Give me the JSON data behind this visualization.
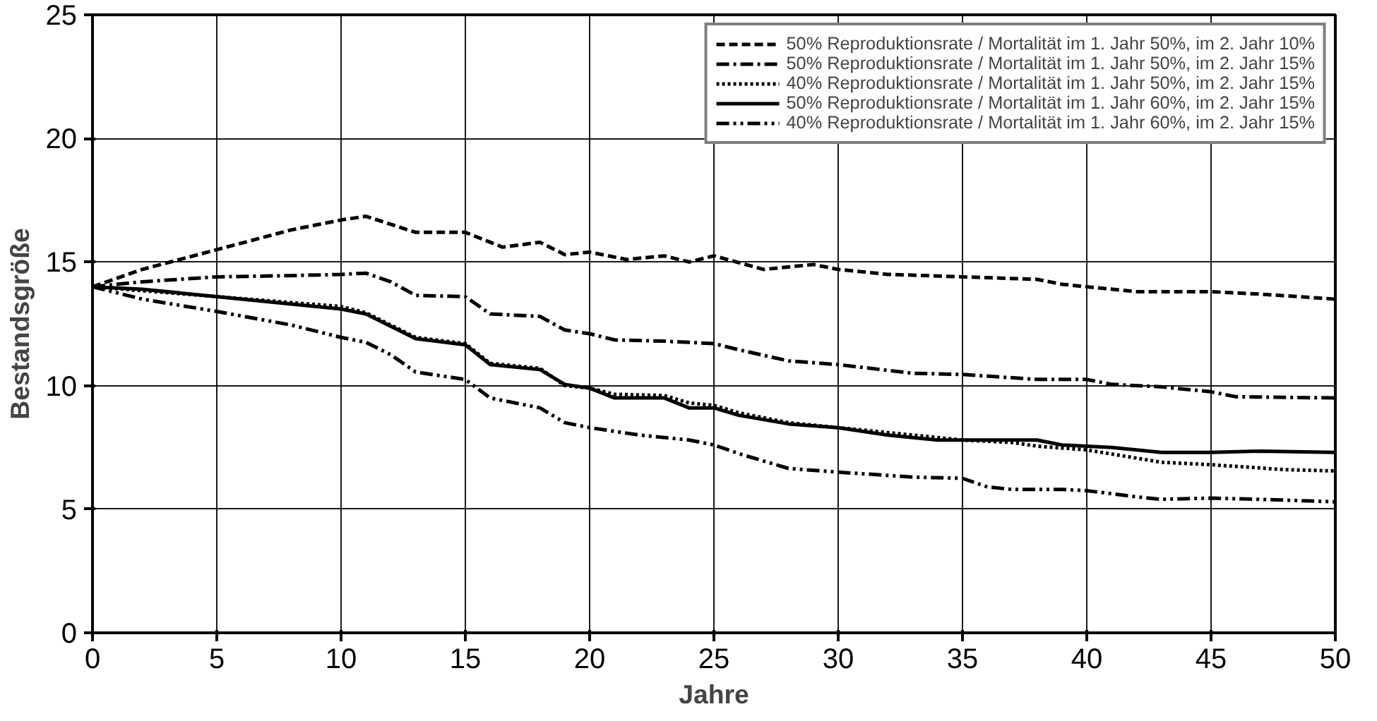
{
  "chart_data": {
    "type": "line",
    "xlabel": "Jahre",
    "ylabel": "Bestandsgröße",
    "xlim": [
      0,
      50
    ],
    "ylim": [
      0,
      25
    ],
    "xticks": [
      0,
      5,
      10,
      15,
      20,
      25,
      30,
      35,
      40,
      45,
      50
    ],
    "yticks": [
      0,
      5,
      10,
      15,
      20,
      25
    ],
    "grid": true,
    "legend": "top right",
    "series": [
      {
        "name": "50% Reproduktionsrate / Mortalität im 1. Jahr 50%, im 2. Jahr 10%",
        "color": "#000000",
        "line_style": "dashed",
        "x": [
          0,
          2,
          5,
          8,
          10,
          11,
          13,
          15,
          16.5,
          18,
          19,
          20,
          21.5,
          23,
          24,
          25,
          27,
          29,
          30,
          32,
          35,
          38,
          39,
          42,
          45,
          47,
          50
        ],
        "values": [
          14,
          14.7,
          15.5,
          16.3,
          16.7,
          16.85,
          16.2,
          16.2,
          15.6,
          15.8,
          15.3,
          15.4,
          15.1,
          15.25,
          15.0,
          15.25,
          14.7,
          14.9,
          14.7,
          14.5,
          14.4,
          14.3,
          14.1,
          13.8,
          13.8,
          13.7,
          13.5
        ]
      },
      {
        "name": "50% Reproduktionsrate / Mortalität im 1. Jahr 50%, im 2. Jahr 15%",
        "color": "#000000",
        "line_style": "dashdot",
        "x": [
          0,
          2,
          5,
          8,
          10,
          11,
          12,
          13,
          15,
          16,
          18,
          19,
          20,
          21,
          23,
          25,
          26,
          28,
          30,
          33,
          35,
          38,
          40,
          41,
          43,
          45,
          46,
          50
        ],
        "values": [
          14,
          14.2,
          14.4,
          14.45,
          14.5,
          14.55,
          14.2,
          13.65,
          13.6,
          12.9,
          12.8,
          12.25,
          12.1,
          11.85,
          11.8,
          11.7,
          11.45,
          11.0,
          10.85,
          10.5,
          10.45,
          10.25,
          10.25,
          10.05,
          9.95,
          9.75,
          9.55,
          9.5
        ]
      },
      {
        "name": "40% Reproduktionsrate / Mortalität im 1. Jahr 50%, im 2. Jahr 15%",
        "color": "#000000",
        "line_style": "dotted",
        "x": [
          0,
          5,
          10,
          11,
          13,
          15,
          16,
          18,
          19,
          20,
          21,
          23,
          24,
          25,
          26,
          28,
          30,
          32,
          35,
          37,
          38,
          40,
          43,
          45,
          48,
          50
        ],
        "values": [
          14,
          13.6,
          13.2,
          12.95,
          11.95,
          11.7,
          10.9,
          10.7,
          10.0,
          9.9,
          9.65,
          9.6,
          9.3,
          9.2,
          8.9,
          8.5,
          8.3,
          8.1,
          7.8,
          7.7,
          7.55,
          7.4,
          6.9,
          6.8,
          6.6,
          6.55
        ]
      },
      {
        "name": "50% Reproduktionsrate / Mortalität im 1. Jahr 60%, im 2. Jahr 15%",
        "color": "#000000",
        "line_style": "solid",
        "x": [
          0,
          2,
          5,
          7,
          10,
          11,
          13,
          15,
          16,
          18,
          19,
          20,
          21,
          23,
          24,
          25,
          26,
          28,
          30,
          32,
          34,
          36,
          38,
          39,
          41,
          43,
          45,
          47,
          50
        ],
        "values": [
          14,
          13.9,
          13.6,
          13.4,
          13.1,
          12.9,
          11.9,
          11.65,
          10.85,
          10.65,
          10.05,
          9.9,
          9.5,
          9.5,
          9.1,
          9.1,
          8.8,
          8.45,
          8.3,
          8.0,
          7.8,
          7.8,
          7.8,
          7.6,
          7.5,
          7.3,
          7.3,
          7.35,
          7.3
        ]
      },
      {
        "name": "40% Reproduktionsrate / Mortalität im 1. Jahr 60%, im 2. Jahr 15%",
        "color": "#000000",
        "line_style": "dashdotdot",
        "x": [
          0,
          2,
          5,
          8,
          10,
          11,
          12,
          13,
          15,
          16,
          18,
          19,
          20,
          22,
          24,
          25,
          26,
          28,
          30,
          33,
          35,
          36,
          37,
          39,
          40,
          42,
          43,
          45,
          47,
          50
        ],
        "values": [
          14,
          13.5,
          13.0,
          12.45,
          11.95,
          11.75,
          11.25,
          10.55,
          10.25,
          9.5,
          9.1,
          8.5,
          8.3,
          8.0,
          7.8,
          7.6,
          7.25,
          6.65,
          6.5,
          6.3,
          6.25,
          5.9,
          5.8,
          5.8,
          5.75,
          5.5,
          5.4,
          5.45,
          5.4,
          5.3
        ]
      }
    ]
  }
}
